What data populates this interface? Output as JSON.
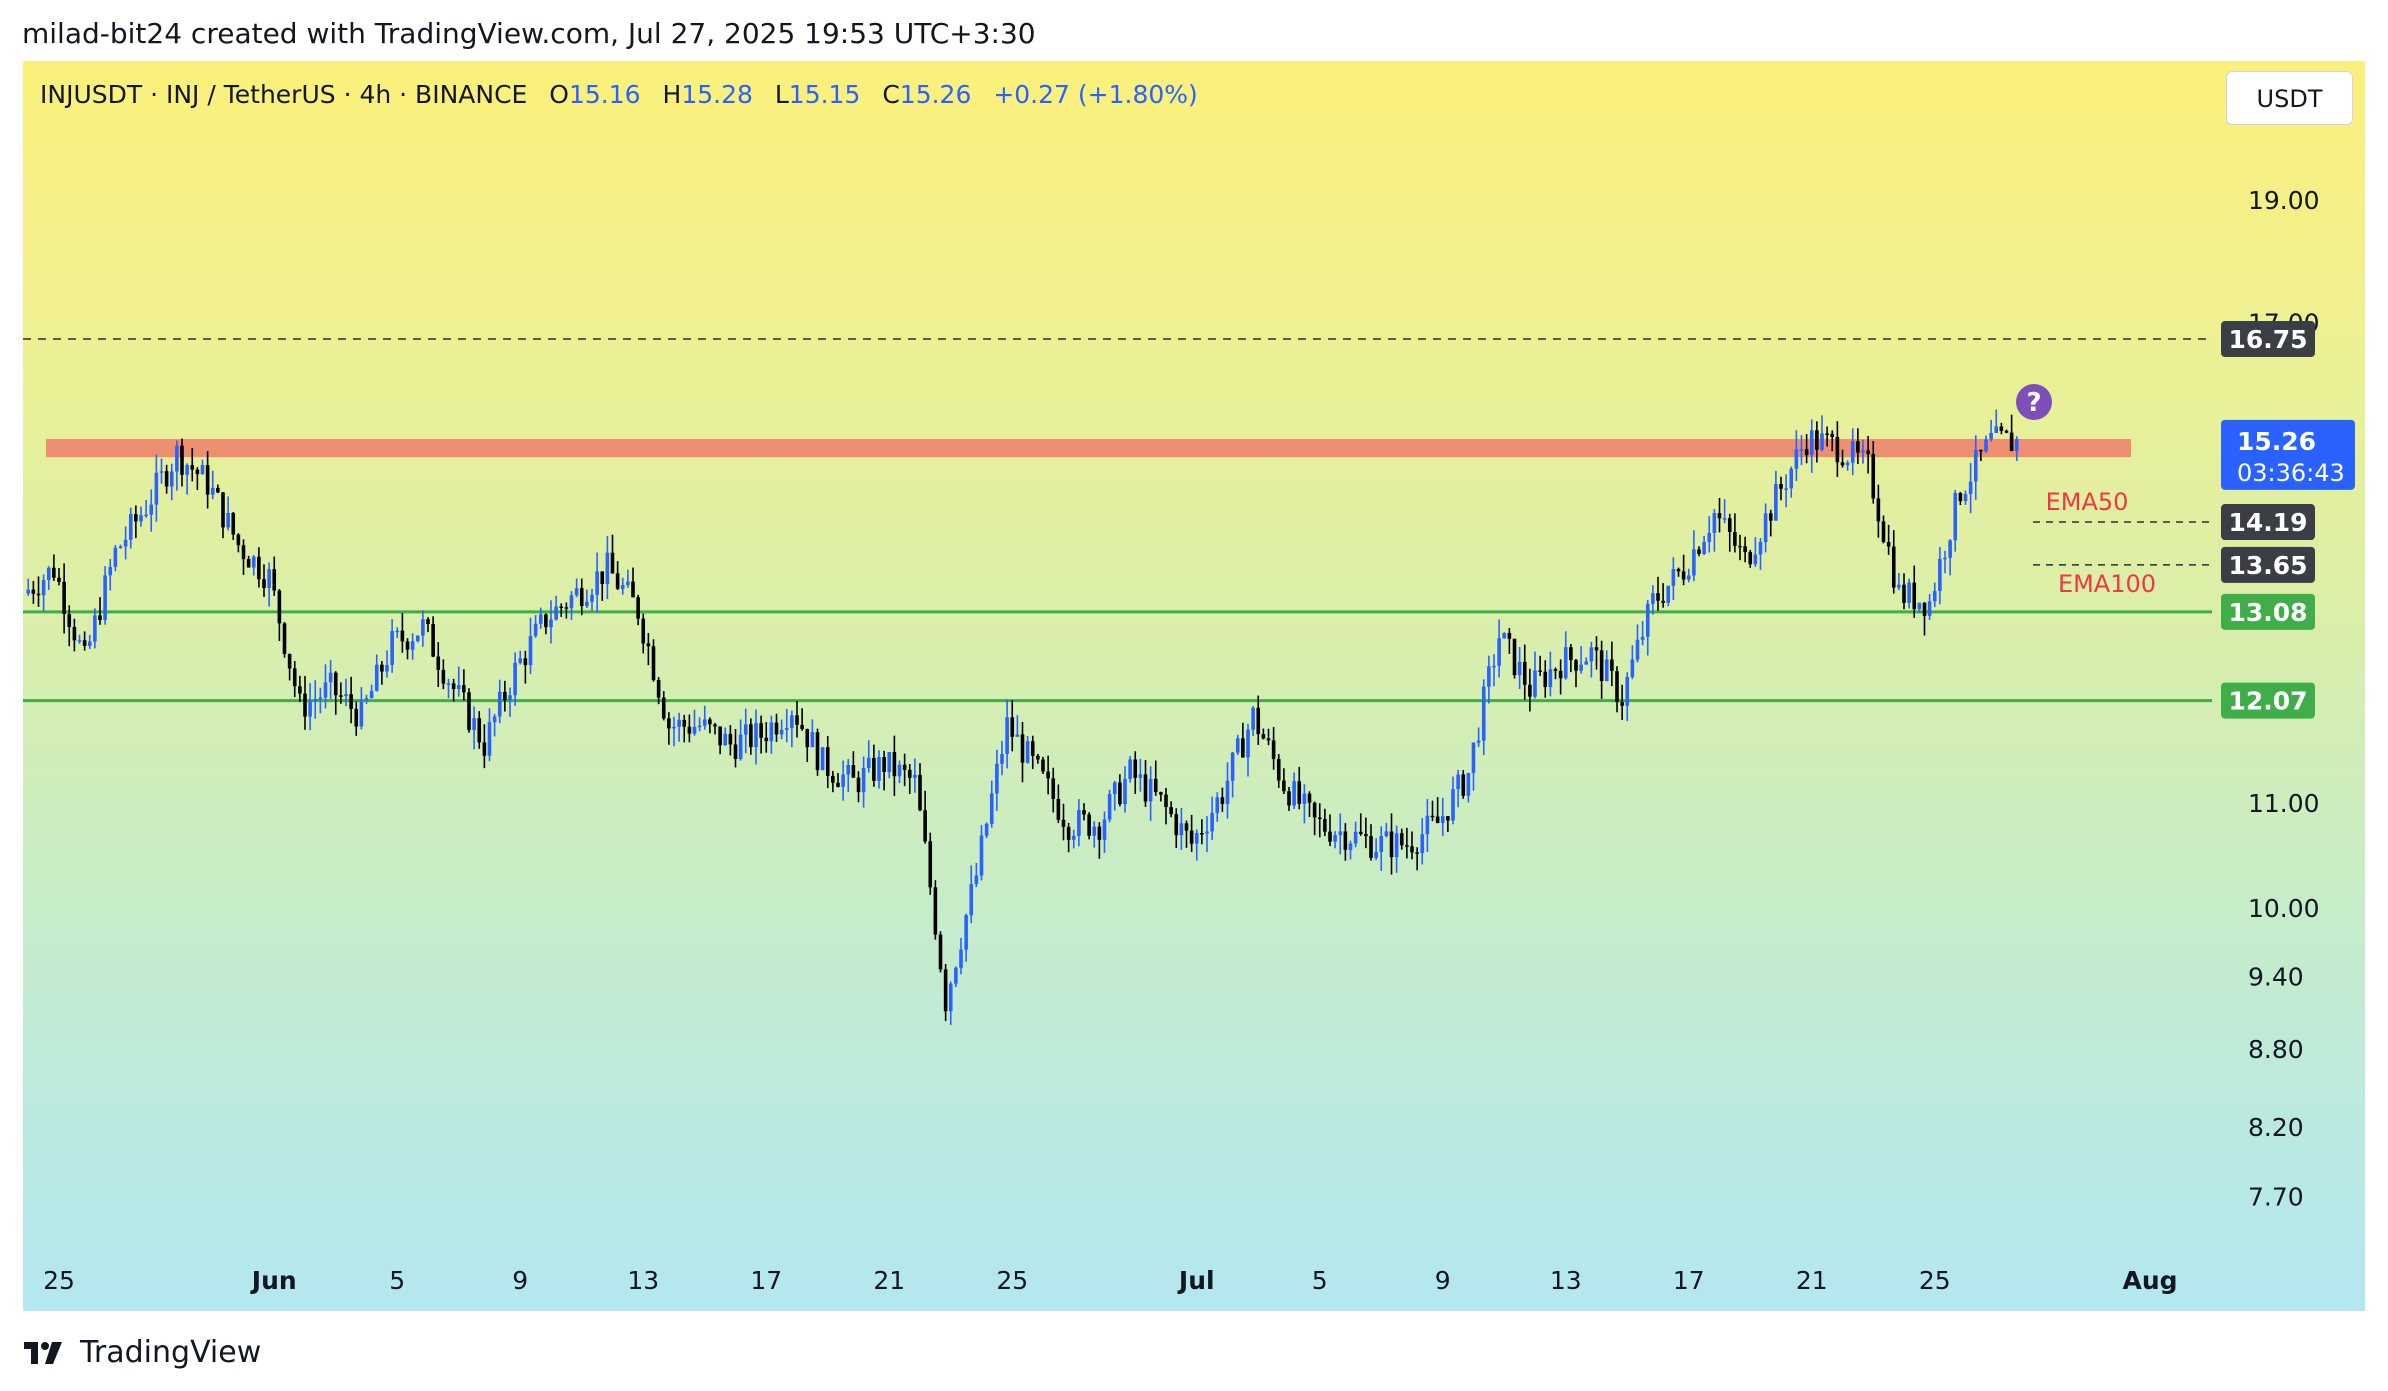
{
  "attribution": "milad-bit24 created with TradingView.com, Jul 27, 2025 19:53 UTC+3:30",
  "header": {
    "symbol": "INJUSDT · INJ / TetherUS · 4h · BINANCE",
    "open_label": "O",
    "open": "15.16",
    "high_label": "H",
    "high": "15.28",
    "low_label": "L",
    "low": "15.15",
    "close_label": "C",
    "close": "15.26",
    "change": "+0.27 (+1.80%)"
  },
  "currency": "USDT",
  "footer_logo": "TradingView",
  "colors": {
    "up": "#2962ff",
    "down": "#000000",
    "resistance_zone": "#f07c6a",
    "support_line": "#3fae49",
    "ema_label": "#f23645",
    "price_badge": "#2962ff",
    "dark_badge": "#3b3e45",
    "question_icon": "#7e4fb8"
  },
  "chart_data": {
    "type": "candlestick",
    "symbol": "INJUSDT",
    "interval": "4h",
    "y_axis": {
      "scale": "log",
      "ylim": [
        7.3,
        21.5
      ],
      "tick_labels": [
        "19.00",
        "17.00",
        "11.00",
        "10.00",
        "9.40",
        "8.80",
        "8.20",
        "7.70"
      ]
    },
    "x_axis": {
      "tick_labels": [
        "25",
        "Jun",
        "5",
        "9",
        "13",
        "17",
        "21",
        "25",
        "Jul",
        "5",
        "9",
        "13",
        "17",
        "21",
        "25",
        "Aug"
      ],
      "tick_dates": [
        "2025-05-25",
        "2025-06-01",
        "2025-06-05",
        "2025-06-09",
        "2025-06-13",
        "2025-06-17",
        "2025-06-21",
        "2025-06-25",
        "2025-07-01",
        "2025-07-05",
        "2025-07-09",
        "2025-07-13",
        "2025-07-17",
        "2025-07-21",
        "2025-07-25",
        "2025-08-01"
      ]
    },
    "price_path": [
      [
        "2025-05-24",
        13.3
      ],
      [
        "2025-05-25",
        13.6
      ],
      [
        "2025-05-26",
        12.5
      ],
      [
        "2025-05-27",
        13.8
      ],
      [
        "2025-05-28",
        14.4
      ],
      [
        "2025-05-29",
        15.1
      ],
      [
        "2025-05-30",
        14.7
      ],
      [
        "2025-05-31",
        13.9
      ],
      [
        "2025-06-01",
        13.5
      ],
      [
        "2025-06-02",
        12.0
      ],
      [
        "2025-06-03",
        12.2
      ],
      [
        "2025-06-04",
        11.9
      ],
      [
        "2025-06-05",
        12.7
      ],
      [
        "2025-06-06",
        12.9
      ],
      [
        "2025-06-07",
        12.2
      ],
      [
        "2025-06-08",
        11.6
      ],
      [
        "2025-06-09",
        12.4
      ],
      [
        "2025-06-10",
        13.0
      ],
      [
        "2025-06-11",
        13.3
      ],
      [
        "2025-06-12",
        13.6
      ],
      [
        "2025-06-13",
        13.1
      ],
      [
        "2025-06-14",
        11.8
      ],
      [
        "2025-06-15",
        11.8
      ],
      [
        "2025-06-16",
        11.6
      ],
      [
        "2025-06-17",
        11.7
      ],
      [
        "2025-06-18",
        12.0
      ],
      [
        "2025-06-19",
        11.4
      ],
      [
        "2025-06-20",
        11.2
      ],
      [
        "2025-06-21",
        11.4
      ],
      [
        "2025-06-22",
        11.2
      ],
      [
        "2025-06-23",
        9.2
      ],
      [
        "2025-06-24",
        10.3
      ],
      [
        "2025-06-25",
        11.8
      ],
      [
        "2025-06-26",
        11.3
      ],
      [
        "2025-06-27",
        10.8
      ],
      [
        "2025-06-28",
        10.8
      ],
      [
        "2025-06-29",
        11.3
      ],
      [
        "2025-06-30",
        11.0
      ],
      [
        "2025-07-01",
        10.6
      ],
      [
        "2025-07-02",
        11.1
      ],
      [
        "2025-07-03",
        11.9
      ],
      [
        "2025-07-04",
        11.2
      ],
      [
        "2025-07-05",
        10.8
      ],
      [
        "2025-07-06",
        10.7
      ],
      [
        "2025-07-07",
        10.6
      ],
      [
        "2025-07-08",
        10.6
      ],
      [
        "2025-07-09",
        10.8
      ],
      [
        "2025-07-10",
        11.3
      ],
      [
        "2025-07-11",
        12.8
      ],
      [
        "2025-07-12",
        12.2
      ],
      [
        "2025-07-13",
        12.5
      ],
      [
        "2025-07-14",
        12.6
      ],
      [
        "2025-07-15",
        12.1
      ],
      [
        "2025-07-16",
        13.2
      ],
      [
        "2025-07-17",
        13.6
      ],
      [
        "2025-07-18",
        14.3
      ],
      [
        "2025-07-19",
        13.7
      ],
      [
        "2025-07-20",
        14.5
      ],
      [
        "2025-07-21",
        15.3
      ],
      [
        "2025-07-22",
        15.2
      ],
      [
        "2025-07-23",
        14.9
      ],
      [
        "2025-07-24",
        13.3
      ],
      [
        "2025-07-25",
        13.2
      ],
      [
        "2025-07-26",
        14.6
      ],
      [
        "2025-07-27",
        15.26
      ]
    ],
    "horizontal_levels": [
      {
        "price": 16.75,
        "style": "dashed",
        "label": "16.75"
      },
      {
        "price": 14.19,
        "style": "dashed",
        "label": "14.19",
        "name": "EMA50"
      },
      {
        "price": 13.65,
        "style": "dashed",
        "label": "13.65",
        "name": "EMA100"
      },
      {
        "price": 13.08,
        "style": "solid",
        "label": "13.08"
      },
      {
        "price": 12.07,
        "style": "solid",
        "label": "12.07"
      }
    ],
    "resistance_zone": {
      "from": 15.05,
      "to": 15.3
    },
    "last_price": {
      "price": "15.26",
      "countdown": "03:36:43"
    },
    "annotation": "?"
  }
}
